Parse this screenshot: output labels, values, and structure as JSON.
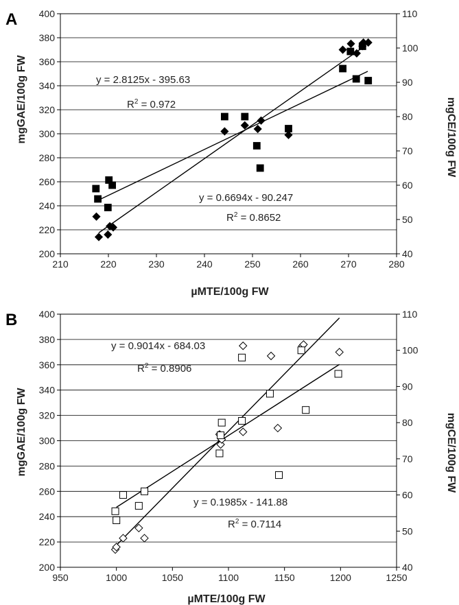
{
  "chart_data": [
    {
      "panel": "A",
      "type": "scatter",
      "xlabel": "µMTE/100g FW",
      "ylabel_left": "mgGAE/100g FW",
      "ylabel_right": "mgCE/100g FW",
      "xlim": [
        210,
        280
      ],
      "xticks": [
        "210",
        "220",
        "230",
        "240",
        "250",
        "260",
        "270",
        "280"
      ],
      "ylim_left": [
        200,
        400
      ],
      "yticks_left": [
        "200",
        "220",
        "240",
        "260",
        "280",
        "300",
        "320",
        "340",
        "360",
        "380",
        "400"
      ],
      "ylim_right": [
        40,
        110
      ],
      "yticks_right": [
        "40",
        "50",
        "60",
        "70",
        "80",
        "90",
        "100",
        "110"
      ],
      "grid": true,
      "series": [
        {
          "marker": "filled-diamond",
          "axis": "left",
          "points": [
            [
              218,
              214
            ],
            [
              217.5,
              231
            ],
            [
              219.9,
              216
            ],
            [
              220.3,
              223
            ],
            [
              221,
              222
            ],
            [
              244.2,
              302
            ],
            [
              248.4,
              307
            ],
            [
              251.1,
              304
            ],
            [
              251.8,
              311
            ],
            [
              257.5,
              299
            ],
            [
              268.8,
              370
            ],
            [
              270.5,
              375
            ],
            [
              271.7,
              367
            ],
            [
              272.9,
              373
            ],
            [
              273.1,
              376
            ],
            [
              274.1,
              376
            ]
          ]
        },
        {
          "marker": "filled-square",
          "axis": "right",
          "points": [
            [
              217.4,
              59.0
            ],
            [
              217.8,
              56.0
            ],
            [
              219.9,
              53.5
            ],
            [
              220.1,
              61.5
            ],
            [
              220.8,
              60.0
            ],
            [
              244.2,
              80.0
            ],
            [
              248.4,
              80.0
            ],
            [
              250.9,
              71.5
            ],
            [
              251.6,
              65.0
            ],
            [
              257.5,
              76.5
            ],
            [
              268.8,
              94.0
            ],
            [
              270.4,
              99.0
            ],
            [
              271.6,
              91.0
            ],
            [
              272.9,
              100.5
            ],
            [
              274.1,
              90.5
            ]
          ]
        }
      ],
      "trendlines": [
        {
          "axis": "left",
          "x": [
            218,
            273
          ],
          "y": [
            217.5,
            372
          ],
          "equation": "y = 2.8125x - 395.63",
          "r2_label": "R",
          "r2_value": " = 0.972"
        },
        {
          "axis": "right",
          "x": [
            218,
            274
          ],
          "y": [
            55.7,
            93.2
          ],
          "equation": "y = 0.6694x - 90.247",
          "r2_label": "R",
          "r2_value": " = 0.8652"
        }
      ]
    },
    {
      "panel": "B",
      "type": "scatter",
      "xlabel": "µMTE/100g FW",
      "ylabel_left": "mgGAE/100g FW",
      "ylabel_right": "mgCE/100g FW",
      "xlim": [
        950,
        1250
      ],
      "xticks": [
        "950",
        "1000",
        "1050",
        "1100",
        "1150",
        "1200",
        "1250"
      ],
      "ylim_left": [
        200,
        400
      ],
      "yticks_left": [
        "200",
        "220",
        "240",
        "260",
        "280",
        "300",
        "320",
        "340",
        "360",
        "380",
        "400"
      ],
      "ylim_right": [
        40,
        110
      ],
      "yticks_right": [
        "40",
        "50",
        "60",
        "70",
        "80",
        "90",
        "100",
        "110"
      ],
      "grid": true,
      "series": [
        {
          "marker": "open-diamond",
          "axis": "left",
          "points": [
            [
              999,
              214
            ],
            [
              1000,
              216
            ],
            [
              1006,
              223
            ],
            [
              1020,
              231
            ],
            [
              1025,
              223
            ],
            [
              1092,
              305
            ],
            [
              1093,
              297
            ],
            [
              1094,
              301
            ],
            [
              1113,
              375
            ],
            [
              1113,
              307
            ],
            [
              1138,
              367
            ],
            [
              1144,
              310
            ],
            [
              1166,
              375
            ],
            [
              1167,
              376
            ],
            [
              1199,
              370
            ]
          ]
        },
        {
          "marker": "open-square",
          "axis": "right",
          "points": [
            [
              999,
              55.5
            ],
            [
              1000,
              53.0
            ],
            [
              1006,
              60.0
            ],
            [
              1020,
              57.0
            ],
            [
              1025,
              61.0
            ],
            [
              1092,
              71.5
            ],
            [
              1093,
              76.5
            ],
            [
              1094,
              80.0
            ],
            [
              1112,
              98.0
            ],
            [
              1112,
              80.5
            ],
            [
              1137,
              88.0
            ],
            [
              1145,
              65.5
            ],
            [
              1165,
              100.0
            ],
            [
              1169,
              83.5
            ],
            [
              1198,
              93.5
            ]
          ]
        }
      ],
      "trendlines": [
        {
          "axis": "left",
          "x": [
            1000,
            1199
          ],
          "y": [
            217.4,
            397
          ],
          "equation": "y = 0.9014x - 684.03",
          "r2_label": "R",
          "r2_value": " = 0.8906"
        },
        {
          "axis": "right",
          "x": [
            1000,
            1199
          ],
          "y": [
            56.6,
            96.1
          ],
          "equation": "y = 0.1985x - 141.88",
          "r2_label": "R",
          "r2_value": " = 0.7114"
        }
      ]
    }
  ]
}
